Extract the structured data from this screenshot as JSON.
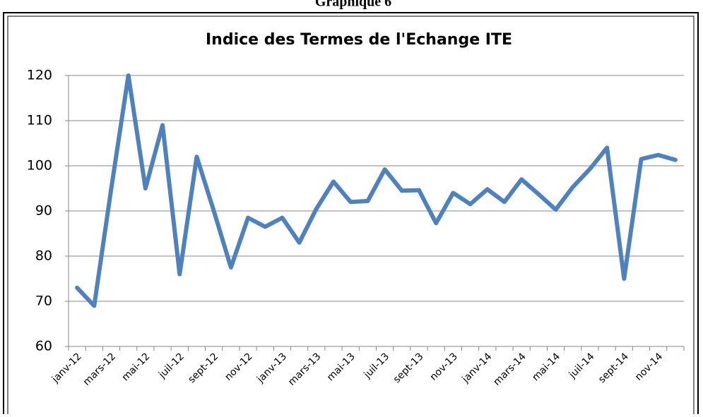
{
  "header": "Graphique 6",
  "chart_data": {
    "type": "line",
    "title": "Indice des Termes de l'Echange ITE",
    "categories": [
      "janv-12",
      null,
      "mars-12",
      null,
      "mai-12",
      null,
      "juil-12",
      null,
      "sept-12",
      null,
      "nov-12",
      null,
      "janv-13",
      null,
      "mars-13",
      null,
      "mai-13",
      null,
      "juil-13",
      null,
      "sept-13",
      null,
      "nov-13",
      null,
      "janv-14",
      null,
      "mars-14",
      null,
      "mai-14",
      null,
      "juil-14",
      null,
      "sept-14",
      null,
      "nov-14",
      null
    ],
    "series": [
      {
        "name": "ITE",
        "color": "#4f81bd",
        "values": [
          73,
          69,
          95,
          120,
          95,
          109,
          76,
          102,
          90,
          77.5,
          88.5,
          86.5,
          88.5,
          83,
          90.5,
          96.5,
          92,
          92.2,
          99.2,
          94.5,
          94.6,
          87.3,
          94,
          91.5,
          94.8,
          92,
          97,
          93.7,
          90.3,
          95.3,
          99.3,
          104,
          75,
          101.5,
          102.4,
          101.3
        ]
      }
    ],
    "ylim": [
      60,
      120
    ],
    "yticks": [
      60,
      70,
      80,
      90,
      100,
      110,
      120
    ],
    "grid": true,
    "legend": false
  }
}
